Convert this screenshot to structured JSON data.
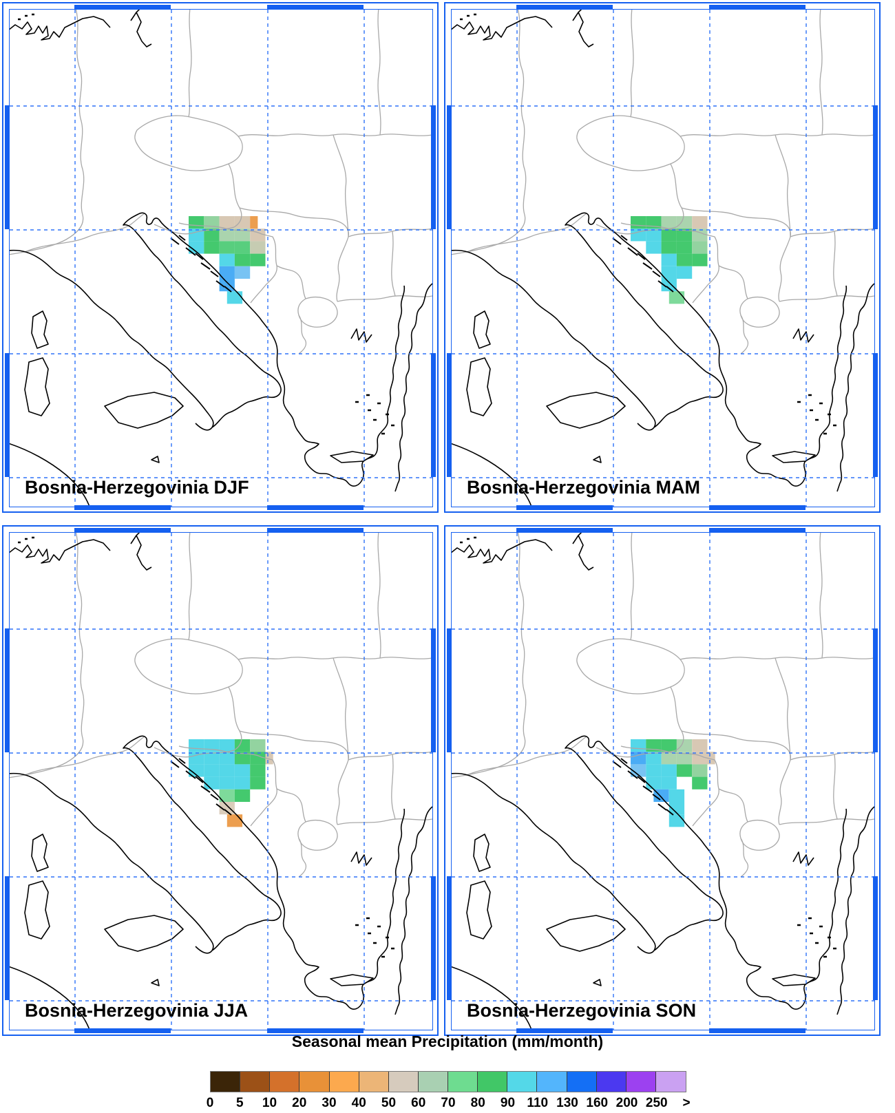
{
  "region": "Bosnia-Herzegovinia",
  "panels": [
    {
      "season": "DJF",
      "title": "Bosnia-Herzegovinia DJF"
    },
    {
      "season": "MAM",
      "title": "Bosnia-Herzegovinia MAM"
    },
    {
      "season": "JJA",
      "title": "Bosnia-Herzegovinia JJA"
    },
    {
      "season": "SON",
      "title": "Bosnia-Herzegovinia SON"
    }
  ],
  "colorbar": {
    "title": "Seasonal mean Precipitation (mm/month)",
    "tick_labels": [
      "0",
      "5",
      "10",
      "20",
      "30",
      "40",
      "50",
      "60",
      "70",
      "80",
      "90",
      "110",
      "130",
      "160",
      "200",
      "250",
      ">"
    ],
    "colors": [
      "#3b2508",
      "#9c5117",
      "#d4712b",
      "#e89138",
      "#fca94e",
      "#ecb577",
      "#d6cbbd",
      "#a9d0b2",
      "#6edc90",
      "#41c767",
      "#54d8e8",
      "#53b5fc",
      "#146ff5",
      "#4b39f0",
      "#9c41f0",
      "#caa1f2"
    ]
  },
  "map_colors": {
    "frame_blue": "#1560f0",
    "graticule_blue": "#2e72f8",
    "coastline": "#000000",
    "country_border": "#a8a8a8"
  },
  "cell_palette": {
    "g": "#44c96e",
    "g2": "#58ce7e",
    "lg": "#7eda9b",
    "sg": "#aad4ae",
    "sg2": "#93d3a0",
    "st": "#c6ccb2",
    "t": "#d8c8b4",
    "tl": "#dacdbb",
    "c": "#54d7e8",
    "b": "#4aacf5",
    "bl": "#78c3f3",
    "o": "#ec9e4f"
  },
  "cells": {
    "DJF": [
      [
        0,
        0,
        "g"
      ],
      [
        1,
        0,
        "sg2"
      ],
      [
        2,
        0,
        "t"
      ],
      [
        3,
        0,
        "t"
      ],
      [
        4,
        0,
        "o",
        0.5
      ],
      [
        0,
        1,
        "c"
      ],
      [
        1,
        1,
        "g"
      ],
      [
        2,
        1,
        "sg"
      ],
      [
        3,
        1,
        "sg"
      ],
      [
        4,
        1,
        "t"
      ],
      [
        0,
        2,
        "c"
      ],
      [
        1,
        2,
        "g"
      ],
      [
        2,
        2,
        "g2"
      ],
      [
        3,
        2,
        "g2"
      ],
      [
        4,
        2,
        "st"
      ],
      [
        2,
        3,
        "c"
      ],
      [
        3,
        3,
        "g"
      ],
      [
        4,
        3,
        "g"
      ],
      [
        2,
        4,
        "b"
      ],
      [
        3,
        4,
        "bl"
      ],
      [
        2,
        5,
        "b"
      ],
      [
        2.5,
        6,
        "c"
      ]
    ],
    "MAM": [
      [
        0,
        0,
        "g"
      ],
      [
        1,
        0,
        "g"
      ],
      [
        2,
        0,
        "sg"
      ],
      [
        3,
        0,
        "sg"
      ],
      [
        4,
        0,
        "t"
      ],
      [
        0,
        1,
        "c"
      ],
      [
        1,
        1,
        "c"
      ],
      [
        2,
        1,
        "g"
      ],
      [
        3,
        1,
        "g"
      ],
      [
        4,
        1,
        "sg"
      ],
      [
        1,
        2,
        "c"
      ],
      [
        2,
        2,
        "g"
      ],
      [
        3,
        2,
        "g"
      ],
      [
        4,
        2,
        "sg2"
      ],
      [
        2,
        3,
        "c"
      ],
      [
        3,
        3,
        "g"
      ],
      [
        4,
        3,
        "g"
      ],
      [
        2,
        4,
        "c"
      ],
      [
        3,
        4,
        "c"
      ],
      [
        2,
        5,
        "c"
      ],
      [
        2.5,
        6,
        "lg"
      ]
    ],
    "JJA": [
      [
        0,
        0,
        "c"
      ],
      [
        1,
        0,
        "c"
      ],
      [
        2,
        0,
        "c"
      ],
      [
        3,
        0,
        "g"
      ],
      [
        4,
        0,
        "sg2"
      ],
      [
        0,
        1,
        "c"
      ],
      [
        1,
        1,
        "c"
      ],
      [
        2,
        1,
        "c"
      ],
      [
        3,
        1,
        "g"
      ],
      [
        4,
        1,
        "g"
      ],
      [
        5,
        1,
        "t",
        0.5
      ],
      [
        0,
        2,
        "c"
      ],
      [
        1,
        2,
        "c"
      ],
      [
        2,
        2,
        "c"
      ],
      [
        3,
        2,
        "c"
      ],
      [
        4,
        2,
        "g"
      ],
      [
        1,
        3,
        "c"
      ],
      [
        2,
        3,
        "c"
      ],
      [
        3,
        3,
        "c"
      ],
      [
        4,
        3,
        "g"
      ],
      [
        2,
        4,
        "lg"
      ],
      [
        3,
        4,
        "g"
      ],
      [
        2,
        5,
        "tl"
      ],
      [
        2.5,
        6,
        "o"
      ]
    ],
    "SON": [
      [
        0,
        0,
        "c"
      ],
      [
        1,
        0,
        "g"
      ],
      [
        2,
        0,
        "g"
      ],
      [
        3,
        0,
        "sg"
      ],
      [
        4,
        0,
        "t"
      ],
      [
        0,
        1,
        "b"
      ],
      [
        1,
        1,
        "c"
      ],
      [
        2,
        1,
        "sg"
      ],
      [
        3,
        1,
        "sg"
      ],
      [
        4,
        1,
        "t"
      ],
      [
        5,
        1,
        "t",
        0.5
      ],
      [
        0,
        2,
        "bl"
      ],
      [
        1,
        2,
        "c"
      ],
      [
        2,
        2,
        "c"
      ],
      [
        3,
        2,
        "g"
      ],
      [
        4,
        2,
        "sg2"
      ],
      [
        1,
        3,
        "c"
      ],
      [
        2,
        3,
        "c"
      ],
      [
        4,
        3,
        "g"
      ],
      [
        1.5,
        4,
        "b"
      ],
      [
        2.5,
        4,
        "c"
      ],
      [
        2.5,
        5,
        "c"
      ],
      [
        2.5,
        6,
        "c"
      ]
    ]
  }
}
